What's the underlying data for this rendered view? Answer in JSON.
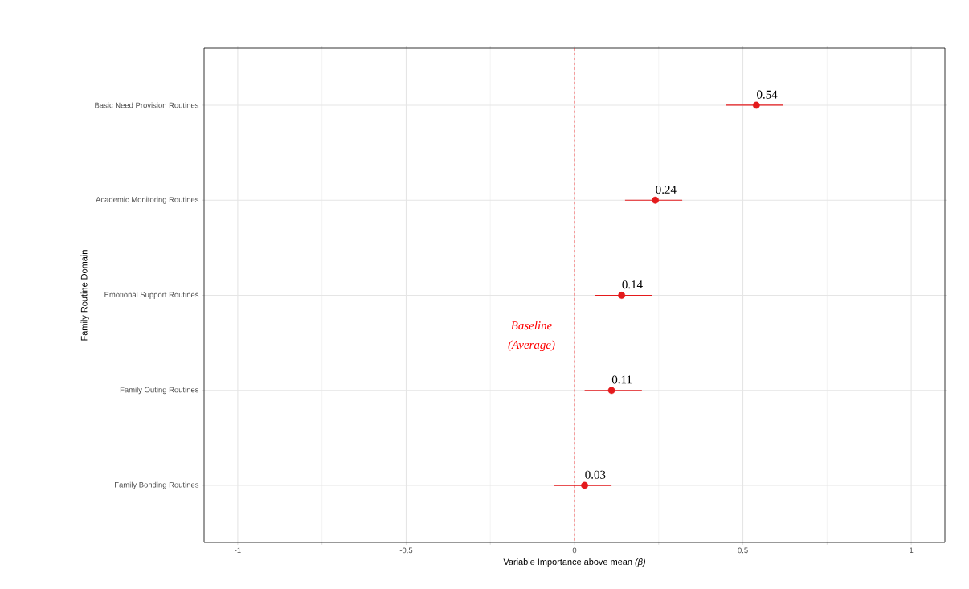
{
  "chart_data": {
    "type": "scatter",
    "orientation": "horizontal",
    "xlabel": "Variable Importance above mean *(β)*",
    "ylabel": "Family Routine Domain",
    "categories": [
      "Basic Need Provision Routines",
      "Academic Monitoring Routines",
      "Emotional Support Routines",
      "Family Outing Routines",
      "Family Bonding Routines"
    ],
    "values": [
      0.54,
      0.24,
      0.14,
      0.11,
      0.03
    ],
    "errors": [
      [
        0.45,
        0.62
      ],
      [
        0.15,
        0.32
      ],
      [
        0.06,
        0.23
      ],
      [
        0.03,
        0.2
      ],
      [
        -0.06,
        0.11
      ]
    ],
    "value_labels": [
      "0.54",
      "0.24",
      "0.14",
      "0.11",
      "0.03"
    ],
    "color": "#e41a1c",
    "marker": "circle",
    "xlim": [
      -1.1,
      1.1
    ],
    "xticks": [
      -1,
      -0.5,
      0,
      0.5,
      1
    ],
    "ref_lines": [
      {
        "axis": "x",
        "value": 0,
        "label": "Baseline (Average)",
        "color": "#ff0000",
        "line_style": "dashed"
      }
    ],
    "grid": true
  }
}
